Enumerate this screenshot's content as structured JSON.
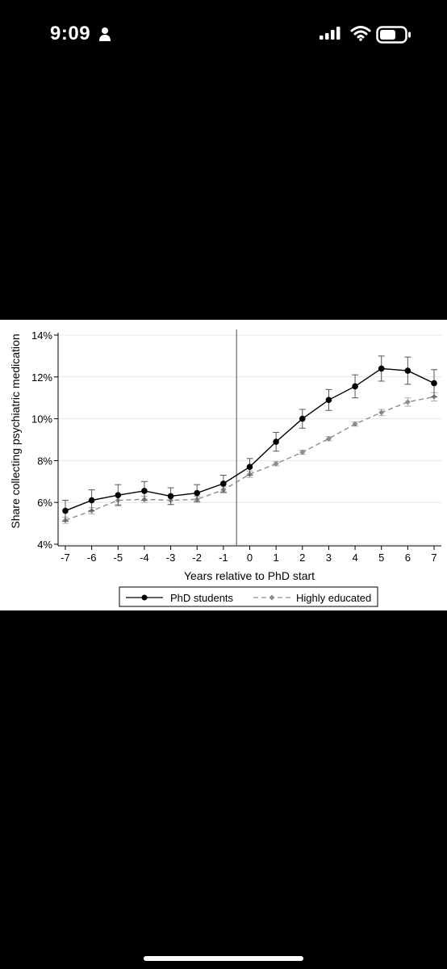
{
  "status_bar": {
    "time": "9:09",
    "icons": [
      "person-icon",
      "signal-icon",
      "wifi-icon",
      "battery-icon"
    ]
  },
  "chart_data": {
    "type": "line",
    "title": "",
    "xlabel": "Years relative to PhD start",
    "ylabel": "Share collecting psychiatric medication",
    "x": [
      -7,
      -6,
      -5,
      -4,
      -3,
      -2,
      -1,
      0,
      1,
      2,
      3,
      4,
      5,
      6,
      7
    ],
    "x_tick_labels": [
      "-7",
      "-6",
      "-5",
      "-4",
      "-3",
      "-2",
      "-1",
      "0",
      "1",
      "2",
      "3",
      "4",
      "5",
      "6",
      "7"
    ],
    "y_ticks": [
      4,
      6,
      8,
      10,
      12,
      14
    ],
    "y_tick_labels": [
      "4%",
      "6%",
      "8%",
      "10%",
      "12%",
      "14%"
    ],
    "ylim": [
      4,
      14
    ],
    "xlim": [
      -7,
      7
    ],
    "grid": true,
    "vertical_line_x": -0.5,
    "legend_position": "bottom-center",
    "series": [
      {
        "name": "PhD students",
        "color": "#000000",
        "style": "solid",
        "marker": "circle",
        "values": [
          5.6,
          6.1,
          6.35,
          6.55,
          6.3,
          6.45,
          6.9,
          7.7,
          8.9,
          10.0,
          10.9,
          11.55,
          12.4,
          12.3,
          11.7
        ],
        "ci_low": [
          5.1,
          5.6,
          5.85,
          6.1,
          5.9,
          6.05,
          6.5,
          7.3,
          8.45,
          9.55,
          10.4,
          11.0,
          11.8,
          11.65,
          11.05
        ],
        "ci_high": [
          6.1,
          6.6,
          6.85,
          7.0,
          6.7,
          6.85,
          7.3,
          8.1,
          9.35,
          10.45,
          11.4,
          12.1,
          13.0,
          12.95,
          12.35
        ]
      },
      {
        "name": "Highly educated",
        "color": "#8c8c8c",
        "style": "dashed",
        "marker": "diamond",
        "values": [
          5.15,
          5.6,
          6.1,
          6.15,
          6.1,
          6.15,
          6.6,
          7.35,
          7.85,
          8.4,
          9.05,
          9.75,
          10.3,
          10.8,
          11.05
        ],
        "ci_low": [
          5.0,
          5.45,
          5.9,
          6.0,
          5.9,
          6.0,
          6.45,
          7.2,
          7.75,
          8.3,
          8.95,
          9.65,
          10.15,
          10.6,
          10.85
        ],
        "ci_high": [
          5.3,
          5.75,
          6.3,
          6.3,
          6.3,
          6.3,
          6.75,
          7.5,
          7.95,
          8.5,
          9.15,
          9.85,
          10.45,
          11.0,
          11.25
        ]
      }
    ]
  }
}
